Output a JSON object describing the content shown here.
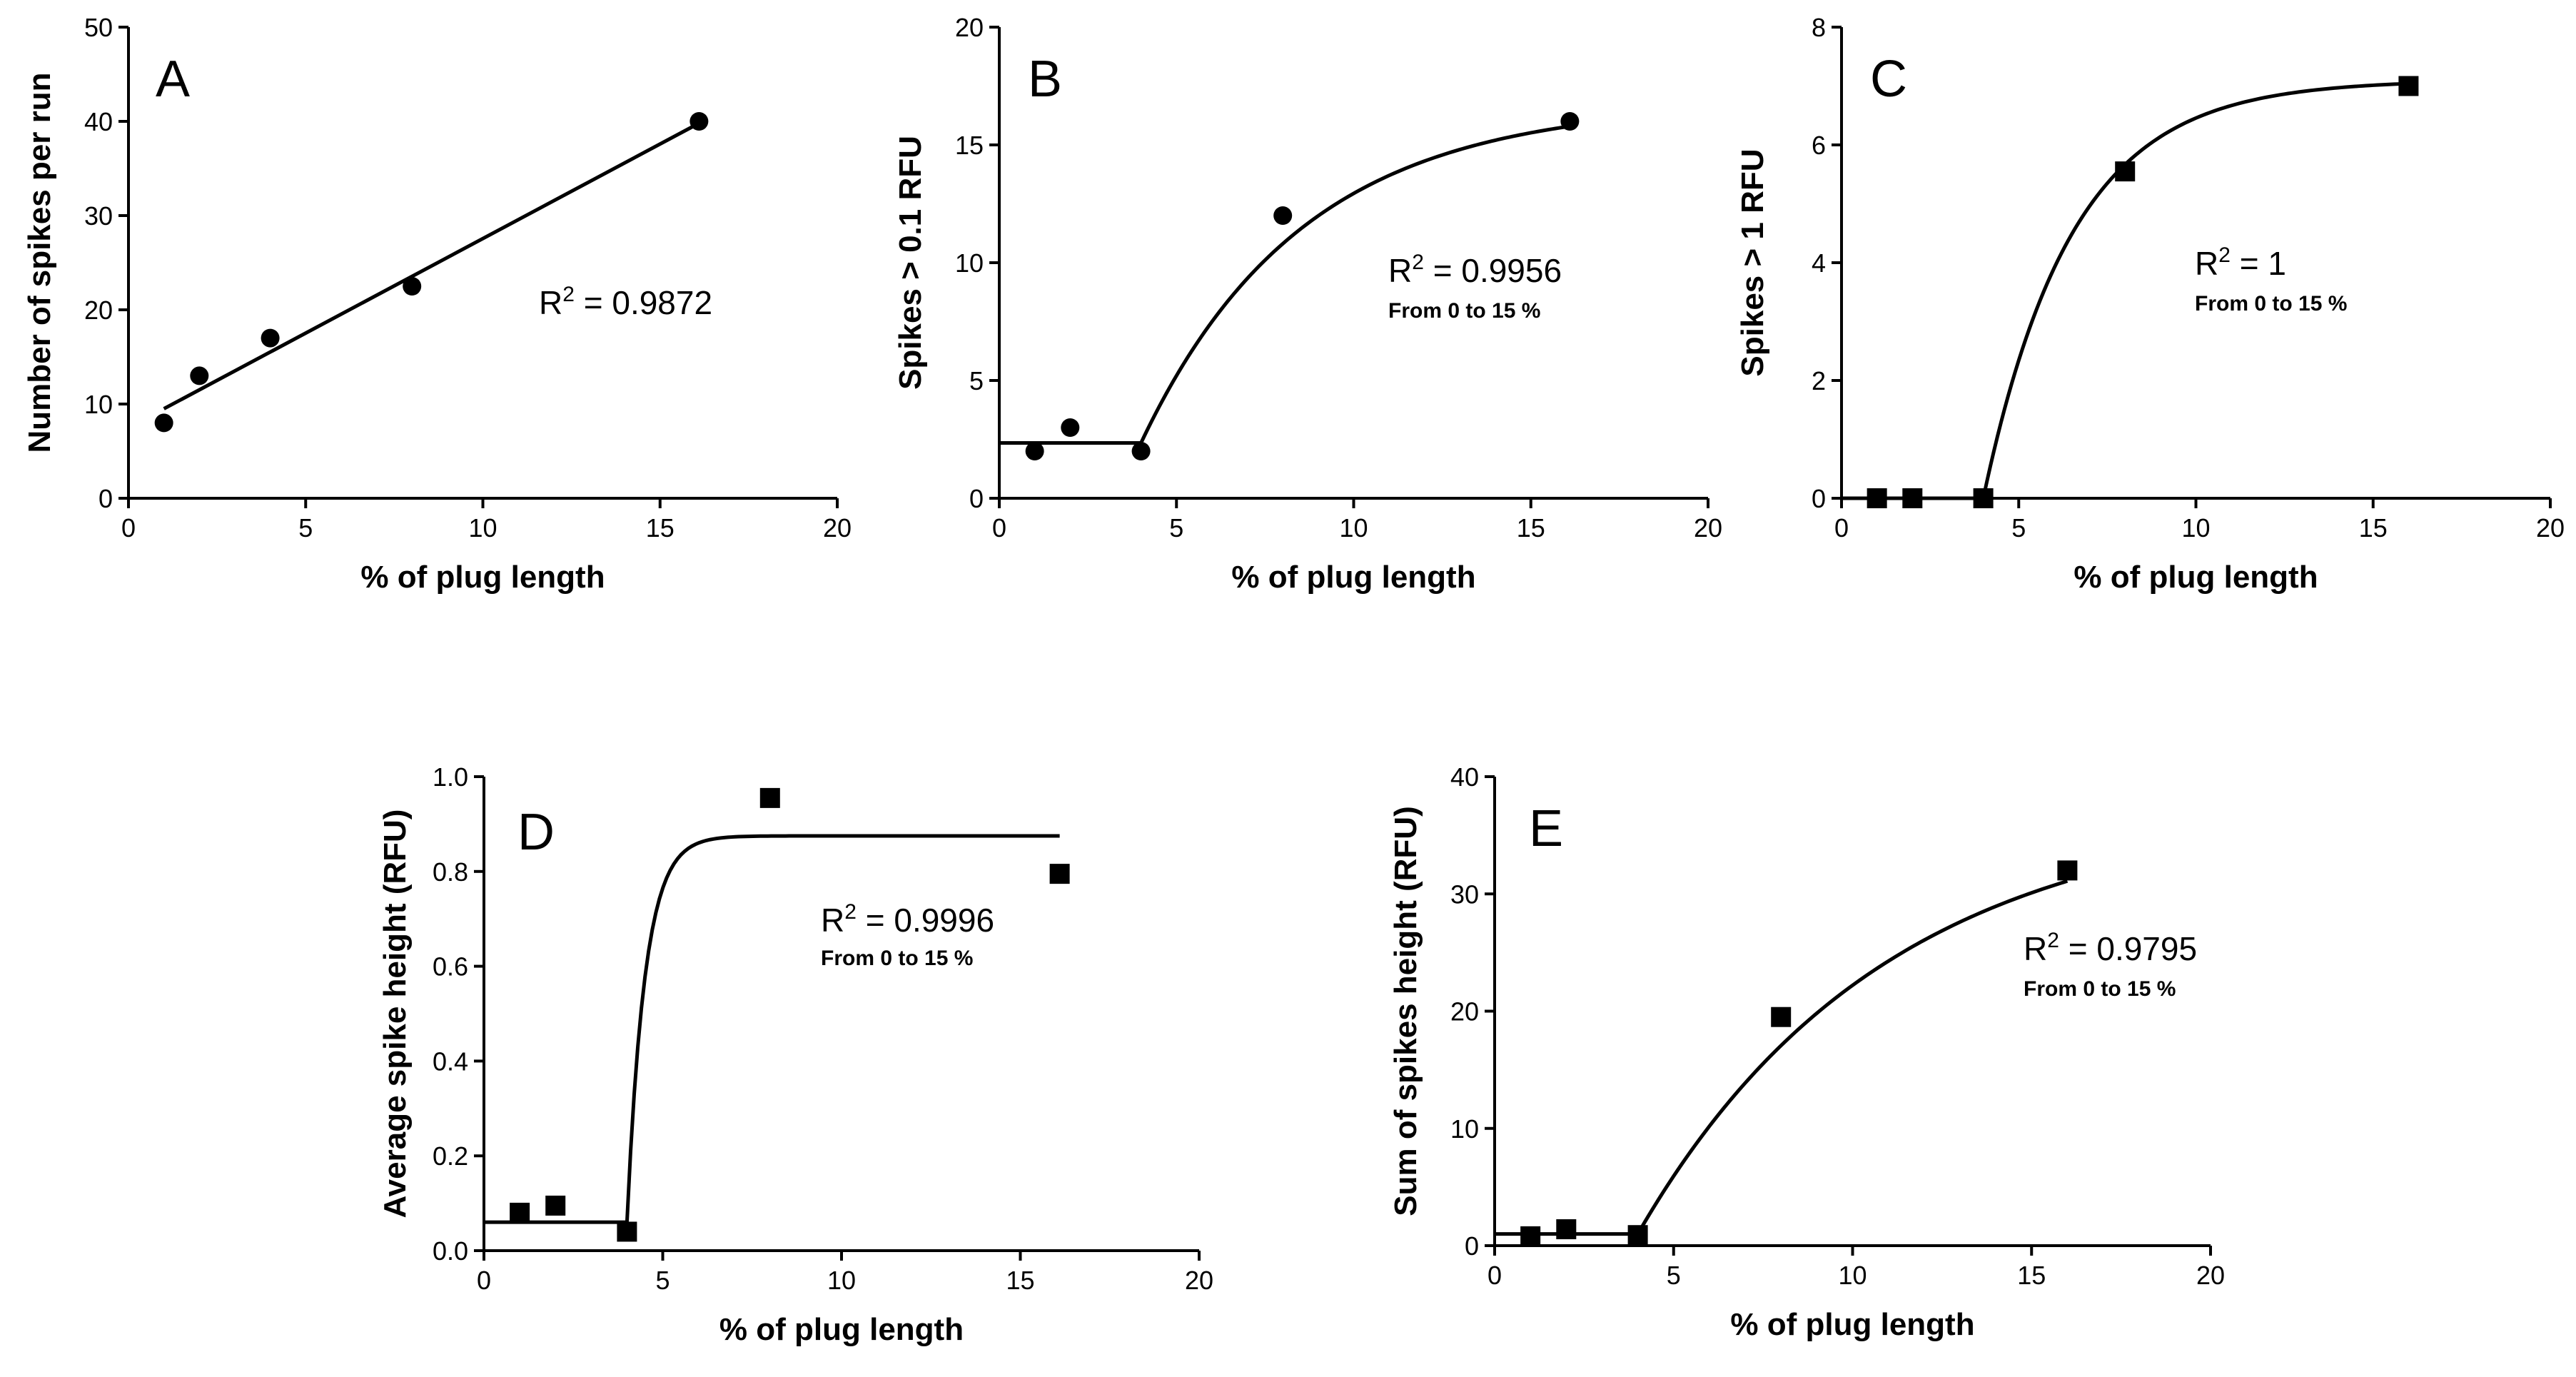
{
  "chart_data": [
    {
      "type": "scatter",
      "panel": "A",
      "xlabel": "%  of plug length",
      "ylabel": "Number of spikes per run",
      "xlim": [
        0,
        20
      ],
      "ylim": [
        0,
        50
      ],
      "xticks": [
        0,
        5,
        10,
        15,
        20
      ],
      "yticks": [
        0,
        10,
        20,
        30,
        40,
        50
      ],
      "marker": "circle",
      "x": [
        1,
        2,
        4,
        8,
        16.1
      ],
      "y": [
        8,
        13,
        17,
        22.5,
        40
      ],
      "fit": {
        "kind": "linear",
        "x": [
          1,
          16.1
        ],
        "y": [
          9.5,
          39.8
        ]
      },
      "r2": "0.9872",
      "note": ""
    },
    {
      "type": "scatter",
      "panel": "B",
      "xlabel": "%  of plug length",
      "ylabel": "Spikes > 0.1 RFU",
      "xlim": [
        0,
        20
      ],
      "ylim": [
        0,
        20
      ],
      "xticks": [
        0,
        5,
        10,
        15,
        20
      ],
      "yticks": [
        0,
        5,
        10,
        15,
        20
      ],
      "marker": "circle",
      "x": [
        1,
        2,
        4,
        8,
        16.1
      ],
      "y": [
        2,
        3,
        2,
        12,
        16
      ],
      "fit": {
        "kind": "plateau-exp",
        "x0": 0,
        "xb": 4,
        "x1": 16.1,
        "base": 2.35,
        "plateau": 16.8,
        "k": 0.22
      },
      "r2": "0.9956",
      "note": "From 0 to 15 %"
    },
    {
      "type": "scatter",
      "panel": "C",
      "xlabel": "%  of plug length",
      "ylabel": "Spikes > 1 RFU",
      "xlim": [
        0,
        20
      ],
      "ylim": [
        0,
        8
      ],
      "xticks": [
        0,
        5,
        10,
        15,
        20
      ],
      "yticks": [
        0,
        2,
        4,
        6,
        8
      ],
      "marker": "square",
      "x": [
        1,
        2,
        4,
        8,
        16
      ],
      "y": [
        0,
        0,
        0,
        5.55,
        7
      ],
      "fit": {
        "kind": "plateau-exp",
        "x0": 0,
        "xb": 4,
        "x1": 16,
        "base": 0,
        "plateau": 7.1,
        "k": 0.4
      },
      "r2": "1",
      "note": "From 0 to 15 %"
    },
    {
      "type": "scatter",
      "panel": "D",
      "xlabel": "%  of plug length",
      "ylabel": "Average spike height (RFU)",
      "xlim": [
        0,
        20
      ],
      "ylim": [
        0,
        1.0
      ],
      "xticks": [
        0,
        5,
        10,
        15,
        20
      ],
      "yticks": [
        0,
        0.2,
        0.4,
        0.6,
        0.8,
        1.0
      ],
      "ytick_labels": [
        "0.0",
        "0.2",
        "0.4",
        "0.6",
        "0.8",
        "1.0"
      ],
      "marker": "square",
      "x": [
        1,
        2,
        4,
        8,
        16.1
      ],
      "y": [
        0.08,
        0.095,
        0.04,
        0.955,
        0.795
      ],
      "fit": {
        "kind": "plateau-exp",
        "x0": 0,
        "xb": 4,
        "x1": 16.1,
        "base": 0.06,
        "plateau": 0.875,
        "k": 2.0
      },
      "r2": "0.9996",
      "note": "From 0 to 15 %"
    },
    {
      "type": "scatter",
      "panel": "E",
      "xlabel": "%  of plug length",
      "ylabel": "Sum of spikes height (RFU)",
      "xlim": [
        0,
        20
      ],
      "ylim": [
        0,
        40
      ],
      "xticks": [
        0,
        5,
        10,
        15,
        20
      ],
      "yticks": [
        0,
        10,
        20,
        30,
        40
      ],
      "marker": "square",
      "x": [
        1,
        2,
        4,
        8,
        16
      ],
      "y": [
        0.8,
        1.4,
        0.9,
        19.5,
        32
      ],
      "fit": {
        "kind": "plateau-exp",
        "x0": 0,
        "xb": 4,
        "x1": 16,
        "base": 1.0,
        "plateau": 37.5,
        "k": 0.145
      },
      "r2": "0.9795",
      "note": "From 0 to 15 %"
    }
  ]
}
